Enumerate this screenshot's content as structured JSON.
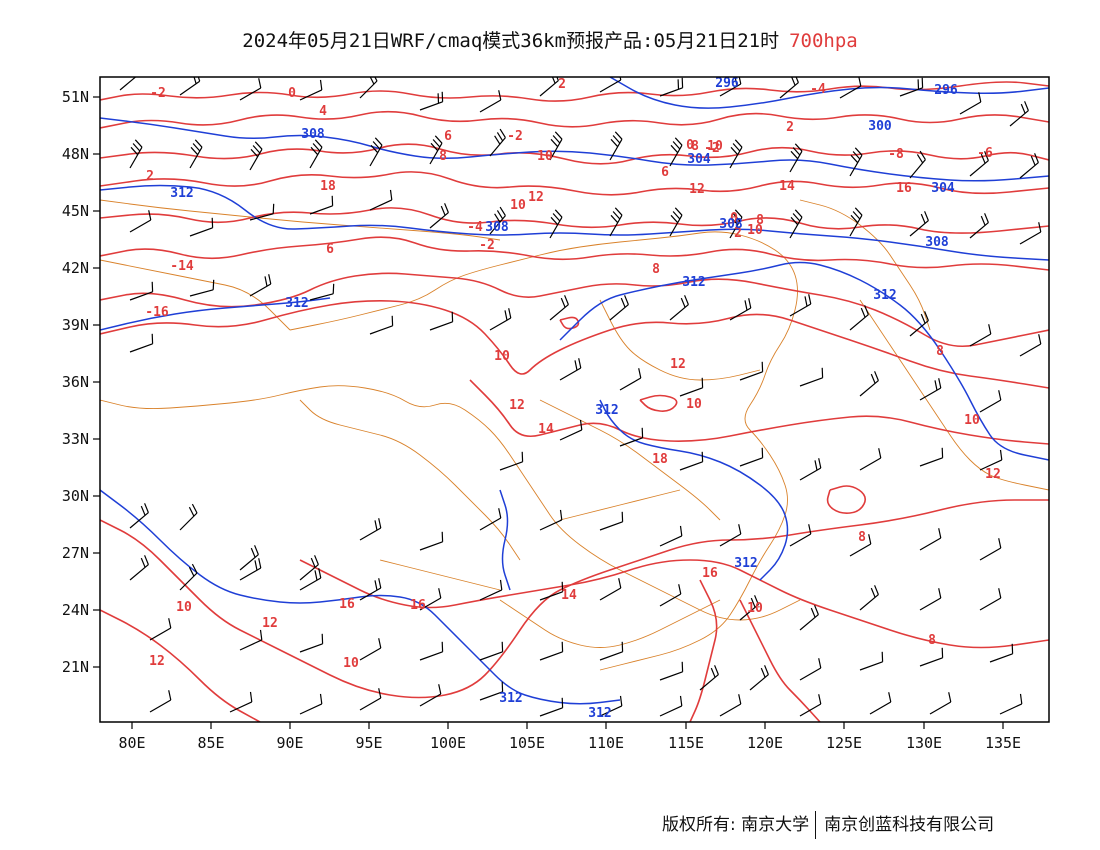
{
  "header": {
    "title": "2024年05月21日WRF/cmaq模式36km预报产品:05月21日21时",
    "level": "700hpa"
  },
  "map": {
    "lon_ticks": [
      "80E",
      "85E",
      "90E",
      "95E",
      "100E",
      "105E",
      "110E",
      "115E",
      "120E",
      "125E",
      "130E",
      "135E"
    ],
    "lat_ticks": [
      "51N",
      "48N",
      "45N",
      "42N",
      "39N",
      "36N",
      "33N",
      "30N",
      "27N",
      "24N",
      "21N"
    ],
    "colors": {
      "temperature": "#e03c3c",
      "height": "#1f3fd6",
      "border": "#d9822b",
      "wind": "#000000"
    },
    "temperature_labels": [
      "-2",
      "0",
      "2",
      "-4",
      "4",
      "6",
      "-2",
      "0",
      "-2",
      "2",
      "-8",
      "-6",
      "-14",
      "-16",
      "8",
      "10",
      "12",
      "14",
      "16",
      "18",
      "10",
      "12",
      "-4",
      "-2",
      "0",
      "2",
      "6",
      "8",
      "10",
      "12",
      "14",
      "18",
      "12",
      "10",
      "8",
      "10",
      "12",
      "8",
      "16",
      "14",
      "16",
      "16",
      "12",
      "10",
      "12",
      "10",
      "10",
      "8",
      "6",
      "8",
      "10",
      "8",
      "10",
      "2"
    ],
    "height_labels": [
      "296",
      "296",
      "300",
      "304",
      "304",
      "308",
      "308",
      "308",
      "308",
      "312",
      "312",
      "312",
      "312",
      "312",
      "312",
      "312",
      "312"
    ]
  },
  "footer": {
    "copyright": "版权所有: 南京大学",
    "company": "南京创蓝科技有限公司"
  }
}
